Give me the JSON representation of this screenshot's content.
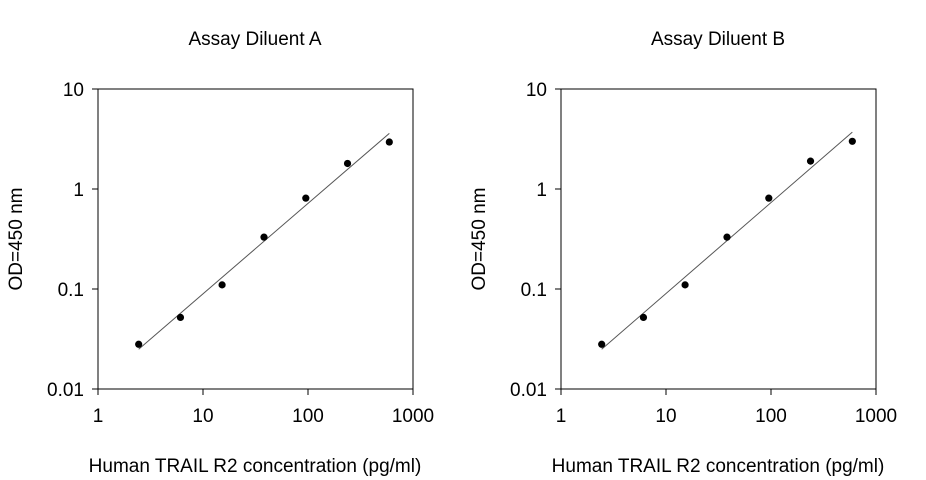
{
  "chart_data": [
    {
      "type": "scatter",
      "title": "Assay Diluent A",
      "xlabel": "Human TRAIL R2 concentration (pg/ml)",
      "ylabel": "OD=450 nm",
      "x_scale": "log",
      "y_scale": "log",
      "xlim": [
        1,
        1000
      ],
      "ylim": [
        0.01,
        10
      ],
      "x_ticks": [
        "1",
        "10",
        "100",
        "1000"
      ],
      "y_ticks": [
        "10",
        "1",
        "0.1",
        "0.01"
      ],
      "grid": false,
      "legend": "none",
      "points": [
        {
          "x": 2.44,
          "y": 0.028
        },
        {
          "x": 6.1,
          "y": 0.052
        },
        {
          "x": 15.2,
          "y": 0.11
        },
        {
          "x": 38.1,
          "y": 0.33
        },
        {
          "x": 95.3,
          "y": 0.81
        },
        {
          "x": 238,
          "y": 1.8
        },
        {
          "x": 595,
          "y": 2.95
        }
      ],
      "fit_line": [
        {
          "x": 2.44,
          "y": 0.025
        },
        {
          "x": 595,
          "y": 3.6
        }
      ]
    },
    {
      "type": "scatter",
      "title": "Assay Diluent B",
      "xlabel": "Human TRAIL R2 concentration (pg/ml)",
      "ylabel": "OD=450 nm",
      "x_scale": "log",
      "y_scale": "log",
      "xlim": [
        1,
        1000
      ],
      "ylim": [
        0.01,
        10
      ],
      "x_ticks": [
        "1",
        "10",
        "100",
        "1000"
      ],
      "y_ticks": [
        "10",
        "1",
        "0.1",
        "0.01"
      ],
      "grid": false,
      "legend": "none",
      "points": [
        {
          "x": 2.44,
          "y": 0.028
        },
        {
          "x": 6.1,
          "y": 0.052
        },
        {
          "x": 15.2,
          "y": 0.11
        },
        {
          "x": 38.1,
          "y": 0.33
        },
        {
          "x": 95.3,
          "y": 0.81
        },
        {
          "x": 238,
          "y": 1.9
        },
        {
          "x": 595,
          "y": 3.0
        }
      ],
      "fit_line": [
        {
          "x": 2.44,
          "y": 0.025
        },
        {
          "x": 595,
          "y": 3.7
        }
      ]
    }
  ],
  "colors": {
    "points": "#000000",
    "axes": "#000000",
    "fit_line": "#555555"
  }
}
